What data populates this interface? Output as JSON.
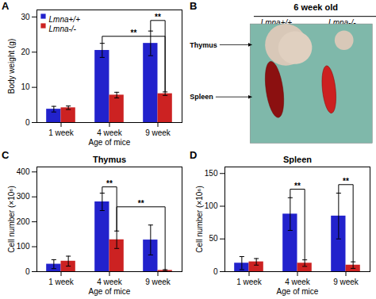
{
  "chart_data": [
    {
      "type": "bar",
      "panel_label": "A",
      "xlabel": "Age of mice",
      "ylabel": "Body weight (g)",
      "categories": [
        "1 week",
        "4 week",
        "9 week"
      ],
      "series": [
        {
          "name": "Lmna+/+",
          "color": "#2222cc",
          "values": [
            3.8,
            20.5,
            22.5
          ],
          "errors": [
            0.8,
            2.0,
            3.5
          ]
        },
        {
          "name": "Lmna-/-",
          "color": "#cc2222",
          "values": [
            4.2,
            7.8,
            8.2
          ],
          "errors": [
            0.5,
            0.8,
            0.5
          ]
        }
      ],
      "ylim": [
        0,
        32
      ],
      "yticks": [
        0,
        10,
        20,
        30
      ],
      "grid": false,
      "legend": "upper left",
      "annotations": [
        {
          "text": "**",
          "from": {
            "category": "4 week",
            "series": "Lmna+/+"
          },
          "to": {
            "category": "9 week",
            "series": "Lmna-/-"
          },
          "y": 24.5
        },
        {
          "text": "**",
          "from": {
            "category": "9 week",
            "series": "Lmna+/+"
          },
          "to": {
            "category": "9 week",
            "series": "Lmna-/-"
          },
          "y": 29.0
        }
      ]
    },
    {
      "type": "illustration",
      "panel_label": "B",
      "title": "6 week old",
      "categories": [
        "Lmna+/+",
        "Lmna-/-"
      ],
      "annotations": [
        "Thymus",
        "Spleen"
      ],
      "color": "#7fb8aa"
    },
    {
      "type": "bar",
      "panel_label": "C",
      "title": "Thymus",
      "xlabel": "Age of mice",
      "ylabel": "Cell number (×10⁶)",
      "categories": [
        "1 week",
        "4 week",
        "9 week"
      ],
      "series": [
        {
          "name": "Lmna+/+",
          "color": "#2222cc",
          "values": [
            30,
            280,
            127
          ],
          "errors": [
            18,
            35,
            60
          ]
        },
        {
          "name": "Lmna-/-",
          "color": "#cc2222",
          "values": [
            42,
            128,
            5
          ],
          "errors": [
            20,
            35,
            3
          ]
        }
      ],
      "ylim": [
        0,
        420
      ],
      "yticks": [
        0,
        100,
        200,
        300,
        400
      ],
      "grid": false,
      "legend": false,
      "annotations": [
        {
          "text": "**",
          "from": {
            "category": "4 week",
            "series": "Lmna+/+"
          },
          "to": {
            "category": "4 week",
            "series": "Lmna-/-"
          },
          "y": 340
        },
        {
          "text": "**",
          "from": {
            "category": "4 week",
            "series": "Lmna-/-"
          },
          "to": {
            "category": "9 week",
            "series": "Lmna-/-"
          },
          "y": 260
        }
      ]
    },
    {
      "type": "bar",
      "panel_label": "D",
      "title": "Spleen",
      "xlabel": "Age of mice",
      "ylabel": "Cell number (×10⁶)",
      "categories": [
        "1 week",
        "4 week",
        "9 week"
      ],
      "series": [
        {
          "name": "Lmna+/+",
          "color": "#2222cc",
          "values": [
            13,
            88,
            85
          ],
          "errors": [
            10,
            25,
            35
          ]
        },
        {
          "name": "Lmna-/-",
          "color": "#cc2222",
          "values": [
            15,
            13,
            10
          ],
          "errors": [
            5,
            5,
            5
          ]
        }
      ],
      "ylim": [
        0,
        160
      ],
      "yticks": [
        0,
        50,
        100,
        150
      ],
      "grid": false,
      "legend": false,
      "annotations": [
        {
          "text": "**",
          "from": {
            "category": "4 week",
            "series": "Lmna+/+"
          },
          "to": {
            "category": "4 week",
            "series": "Lmna-/-"
          },
          "y": 126
        },
        {
          "text": "**",
          "from": {
            "category": "9 week",
            "series": "Lmna+/+"
          },
          "to": {
            "category": "9 week",
            "series": "Lmna-/-"
          },
          "y": 133
        }
      ]
    }
  ]
}
